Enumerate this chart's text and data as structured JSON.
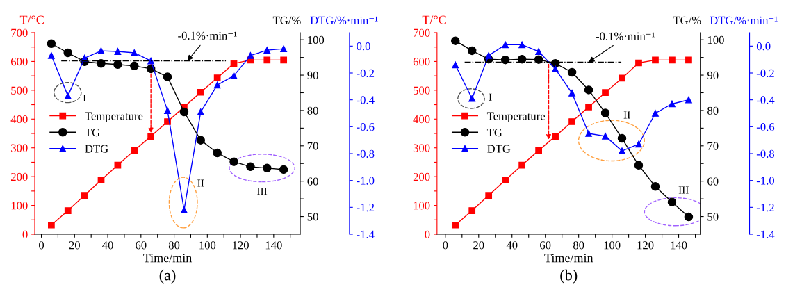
{
  "chart_data": [
    {
      "type": "line",
      "title": "(a)",
      "xlabel": "Time/min",
      "ylabel": "T/°C",
      "y2label": "TG/%",
      "y3label": "DTG/%·min⁻¹",
      "x": [
        6,
        16,
        26,
        36,
        46,
        56,
        66,
        76,
        86,
        96,
        106,
        116,
        126,
        136,
        146
      ],
      "series": [
        {
          "name": "Temperature",
          "color": "#ff0000",
          "marker": "square",
          "values": [
            32,
            82,
            135,
            188,
            240,
            291,
            340,
            391,
            442,
            493,
            543,
            593,
            605,
            605,
            605
          ]
        },
        {
          "name": "TG",
          "color": "#000000",
          "marker": "circle",
          "axis": "y2",
          "values": [
            98.9,
            96.3,
            93.8,
            93.3,
            93.0,
            92.6,
            91.8,
            89.5,
            79.6,
            71.6,
            68.0,
            65.5,
            64.1,
            63.7,
            63.3
          ]
        },
        {
          "name": "DTG",
          "color": "#0000ff",
          "marker": "triangle",
          "axis": "y3",
          "values": [
            -0.07,
            -0.37,
            -0.09,
            -0.035,
            -0.04,
            -0.05,
            -0.11,
            -0.48,
            -1.22,
            -0.49,
            -0.29,
            -0.22,
            -0.07,
            -0.03,
            -0.02
          ]
        }
      ],
      "xlim": [
        -4,
        156
      ],
      "xticks": [
        0,
        {
          "value": 10,
          "label": null
        },
        20,
        {
          "value": 30,
          "label": null
        },
        40,
        {
          "value": 50,
          "label": null
        },
        60,
        {
          "value": 70,
          "label": null
        },
        80,
        {
          "value": 90,
          "label": null
        },
        100,
        {
          "value": 110,
          "label": null
        },
        120,
        {
          "value": 130,
          "label": null
        },
        140,
        {
          "value": 150,
          "label": null
        }
      ],
      "ylim": [
        0,
        700
      ],
      "yticks": [
        0,
        {
          "value": 50,
          "label": null
        },
        100,
        {
          "value": 150,
          "label": null
        },
        200,
        {
          "value": 250,
          "label": null
        },
        300,
        {
          "value": 350,
          "label": null
        },
        400,
        {
          "value": 450,
          "label": null
        },
        500,
        {
          "value": 550,
          "label": null
        },
        600,
        {
          "value": 650,
          "label": null
        },
        700
      ],
      "y2lim": [
        45,
        102
      ],
      "y2ticks": [
        50,
        {
          "value": 55,
          "label": null
        },
        60,
        {
          "value": 65,
          "label": null
        },
        70,
        {
          "value": 75,
          "label": null
        },
        80,
        {
          "value": 85,
          "label": null
        },
        90,
        {
          "value": 95,
          "label": null
        },
        100
      ],
      "y3lim": [
        -1.4,
        0.1
      ],
      "y3ticks": [
        {
          "value": -1.4,
          "label": "-1.4"
        },
        {
          "value": -1.2,
          "label": "-1.2"
        },
        {
          "value": -1.0,
          "label": "-1.0"
        },
        {
          "value": -0.8,
          "label": "-0.8"
        },
        {
          "value": -0.6,
          "label": "-0.6"
        },
        {
          "value": -0.4,
          "label": "-0.4"
        },
        {
          "value": -0.2,
          "label": "-0.2"
        },
        {
          "value": 0.0,
          "label": "0.0"
        }
      ],
      "ref_lines": [
        {
          "axis": "y3",
          "value": -0.11,
          "label": "-0.1%·min⁻¹",
          "color": "#000000",
          "line_style": "dashdot"
        }
      ],
      "annotations": [
        "I",
        "II",
        "III"
      ],
      "legend": "left"
    },
    {
      "type": "line",
      "title": "(b)",
      "xlabel": "Time/min",
      "ylabel": "T/°C",
      "y2label": "TG/%",
      "y3label": "DTG/%·min⁻¹",
      "x": [
        6,
        16,
        26,
        36,
        46,
        56,
        66,
        76,
        86,
        96,
        106,
        116,
        126,
        136,
        146
      ],
      "series": [
        {
          "name": "Temperature",
          "color": "#ff0000",
          "marker": "square",
          "values": [
            32,
            82,
            135,
            188,
            240,
            291,
            340,
            391,
            442,
            492,
            542,
            595,
            605,
            605,
            605
          ]
        },
        {
          "name": "TG",
          "color": "#000000",
          "marker": "circle",
          "axis": "y2",
          "values": [
            99.7,
            96.9,
            94.5,
            94.3,
            94.5,
            94.4,
            93.3,
            90.8,
            85.8,
            79.3,
            72.1,
            64.5,
            58.5,
            54.1,
            49.9
          ]
        },
        {
          "name": "DTG",
          "color": "#0000ff",
          "marker": "triangle",
          "axis": "y3",
          "values": [
            -0.14,
            -0.39,
            -0.07,
            0.01,
            0.01,
            -0.04,
            -0.17,
            -0.35,
            -0.65,
            -0.67,
            -0.78,
            -0.73,
            -0.5,
            -0.43,
            -0.4
          ]
        }
      ],
      "xlim": [
        -5,
        153
      ],
      "xticks": [
        0,
        {
          "value": 10,
          "label": null
        },
        20,
        {
          "value": 30,
          "label": null
        },
        40,
        {
          "value": 50,
          "label": null
        },
        60,
        {
          "value": 70,
          "label": null
        },
        80,
        {
          "value": 90,
          "label": null
        },
        100,
        {
          "value": 110,
          "label": null
        },
        120,
        {
          "value": 130,
          "label": null
        },
        140,
        {
          "value": 150,
          "label": null
        }
      ],
      "ylim": [
        0,
        700
      ],
      "yticks": [
        0,
        {
          "value": 50,
          "label": null
        },
        100,
        {
          "value": 150,
          "label": null
        },
        200,
        {
          "value": 250,
          "label": null
        },
        300,
        {
          "value": 350,
          "label": null
        },
        400,
        {
          "value": 450,
          "label": null
        },
        500,
        {
          "value": 550,
          "label": null
        },
        600,
        {
          "value": 650,
          "label": null
        },
        700
      ],
      "y2lim": [
        45,
        102
      ],
      "y2ticks": [
        50,
        {
          "value": 55,
          "label": null
        },
        60,
        {
          "value": 65,
          "label": null
        },
        70,
        {
          "value": 75,
          "label": null
        },
        80,
        {
          "value": 85,
          "label": null
        },
        90,
        {
          "value": 95,
          "label": null
        },
        100
      ],
      "y3lim": [
        -1.4,
        0.1
      ],
      "y3ticks": [
        {
          "value": -1.4,
          "label": "-1.4"
        },
        {
          "value": -1.2,
          "label": "-1.2"
        },
        {
          "value": -1.0,
          "label": "-1.0"
        },
        {
          "value": -0.8,
          "label": "-0.8"
        },
        {
          "value": -0.6,
          "label": "-0.6"
        },
        {
          "value": -0.4,
          "label": "-0.4"
        },
        {
          "value": -0.2,
          "label": "-0.2"
        },
        {
          "value": 0.0,
          "label": "0.0"
        }
      ],
      "ref_lines": [
        {
          "axis": "y3",
          "value": -0.12,
          "label": "-0.1%·min⁻¹",
          "color": "#000000",
          "line_style": "dashdot"
        }
      ],
      "annotations": [
        "I",
        "II",
        "III"
      ],
      "legend": "left"
    }
  ]
}
